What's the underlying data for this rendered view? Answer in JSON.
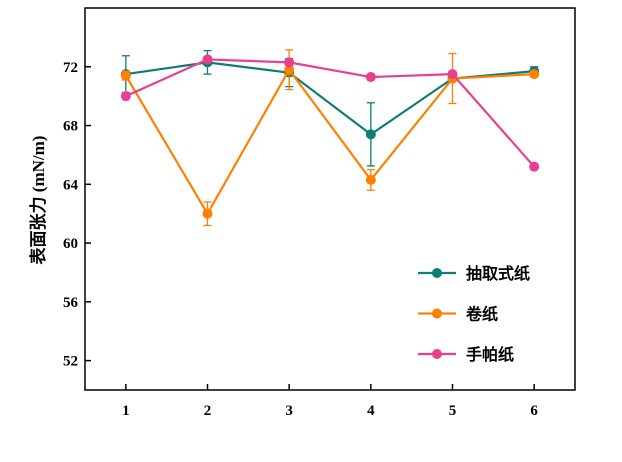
{
  "chart_data": {
    "type": "line",
    "title": "",
    "xlabel": "",
    "ylabel": "表面张力 (mN/m)",
    "x": [
      1,
      2,
      3,
      4,
      5,
      6
    ],
    "xticks": [
      "1",
      "2",
      "3",
      "4",
      "5",
      "6"
    ],
    "xlim": [
      0.5,
      6.5
    ],
    "yticks": [
      52,
      56,
      60,
      64,
      68,
      72
    ],
    "ylim": [
      50,
      76
    ],
    "grid": false,
    "legend_position": "bottom-right",
    "series": [
      {
        "name": "抽取式纸",
        "color": "#0e7d73",
        "values": [
          71.5,
          72.3,
          71.6,
          67.4,
          71.2,
          71.7
        ],
        "errors": [
          1.25,
          0.8,
          0.95,
          2.15,
          0.2,
          0.3
        ]
      },
      {
        "name": "卷纸",
        "color": "#ff8000",
        "values": [
          71.4,
          62.0,
          71.8,
          64.3,
          71.2,
          71.5
        ],
        "errors": [
          0.3,
          0.8,
          1.35,
          0.7,
          1.7,
          0.2
        ]
      },
      {
        "name": "手帕纸",
        "color": "#e8408f",
        "values": [
          70.0,
          72.5,
          72.3,
          71.3,
          71.5,
          65.2
        ],
        "errors": [
          0.1,
          0.2,
          0.2,
          0.1,
          0.2,
          0.1
        ]
      }
    ]
  }
}
